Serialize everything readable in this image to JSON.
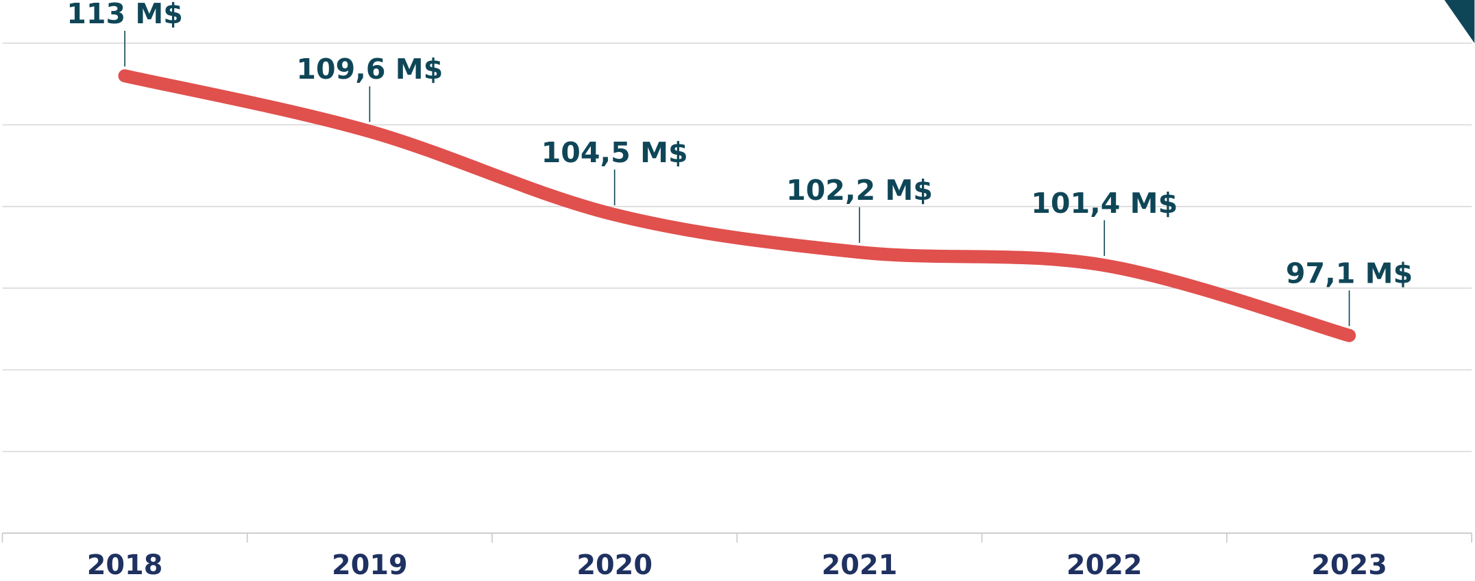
{
  "chart_data": {
    "type": "line",
    "categories": [
      "2018",
      "2019",
      "2020",
      "2021",
      "2022",
      "2023"
    ],
    "values": [
      113,
      109.6,
      104.5,
      102.2,
      101.4,
      97.1
    ],
    "value_labels": [
      "113 M$",
      "109,6 M$",
      "104,5 M$",
      "102,2 M$",
      "101,4 M$",
      "97,1 M$"
    ],
    "color": "#e0504d",
    "ylim": [
      85,
      115
    ],
    "yticks": [
      85,
      90,
      95,
      100,
      105,
      110,
      115
    ],
    "grid": true
  }
}
